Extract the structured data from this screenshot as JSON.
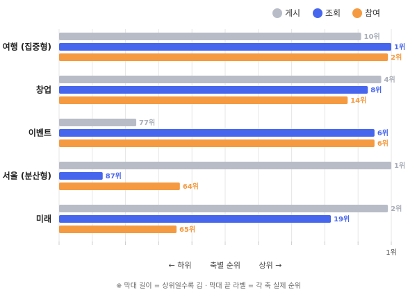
{
  "chart_data": {
    "type": "bar",
    "orientation": "horizontal",
    "categories": [
      "여행 (집중형)",
      "창업",
      "이벤트",
      "서울 (분산형)",
      "미래"
    ],
    "series": [
      {
        "name": "게시",
        "color": "#b8bcc6",
        "values": [
          10,
          4,
          77,
          1,
          2
        ],
        "labels": [
          "10위",
          "4위",
          "77위",
          "1위",
          "2위"
        ]
      },
      {
        "name": "조회",
        "color": "#4766ee",
        "values": [
          1,
          8,
          6,
          87,
          19
        ],
        "labels": [
          "1위",
          "8위",
          "6위",
          "87위",
          "19위"
        ]
      },
      {
        "name": "참여",
        "color": "#f59a40",
        "values": [
          2,
          14,
          6,
          64,
          65
        ],
        "labels": [
          "2위",
          "14위",
          "6위",
          "64위",
          "65위"
        ]
      }
    ],
    "x_tick_label": "1위",
    "xlim": [
      100,
      1
    ],
    "axis_title": {
      "left": "← 하위",
      "center": "축별 순위",
      "right": "상위 →"
    },
    "legend_position": "top-right",
    "grid": true,
    "footnote": "※ 막대 길이 = 상위일수록 김 · 막대 끝 라벨 = 각 축 실제 순위"
  }
}
